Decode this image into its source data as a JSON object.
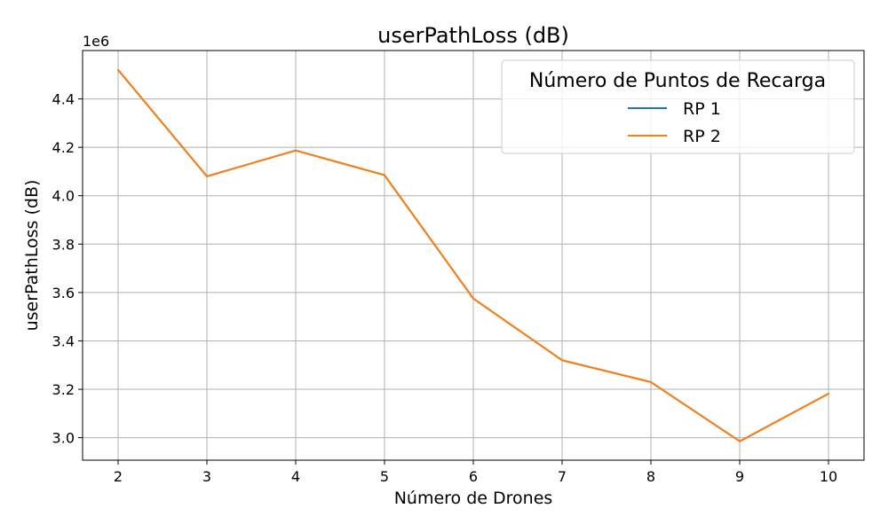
{
  "chart_data": {
    "type": "line",
    "title": "userPathLoss (dB)",
    "xlabel": "Número de Drones",
    "ylabel": "userPathLoss (dB)",
    "y_offset_label": "1e6",
    "x": [
      2,
      3,
      4,
      5,
      6,
      7,
      8,
      9,
      10
    ],
    "x_ticks": [
      "2",
      "3",
      "4",
      "5",
      "6",
      "7",
      "8",
      "9",
      "10"
    ],
    "y_ticks": [
      {
        "value": 3.0,
        "label": "3.0"
      },
      {
        "value": 3.2,
        "label": "3.2"
      },
      {
        "value": 3.4,
        "label": "3.4"
      },
      {
        "value": 3.6,
        "label": "3.6"
      },
      {
        "value": 3.8,
        "label": "3.8"
      },
      {
        "value": 4.0,
        "label": "4.0"
      },
      {
        "value": 4.2,
        "label": "4.2"
      },
      {
        "value": 4.4,
        "label": "4.4"
      }
    ],
    "xlim": [
      1.6,
      10.4
    ],
    "ylim": [
      2.907,
      4.6
    ],
    "grid": true,
    "legend": {
      "title": "Número de Puntos de Recarga",
      "position": "top-right"
    },
    "series": [
      {
        "name": "RP 1",
        "color": "#1f77b4",
        "values": [
          4.52,
          4.08,
          4.187,
          4.085,
          3.575,
          3.32,
          3.23,
          2.985,
          3.182
        ]
      },
      {
        "name": "RP 2",
        "color": "#ff7f0e",
        "values": [
          4.52,
          4.08,
          4.187,
          4.085,
          3.575,
          3.32,
          3.23,
          2.985,
          3.182
        ]
      }
    ]
  }
}
